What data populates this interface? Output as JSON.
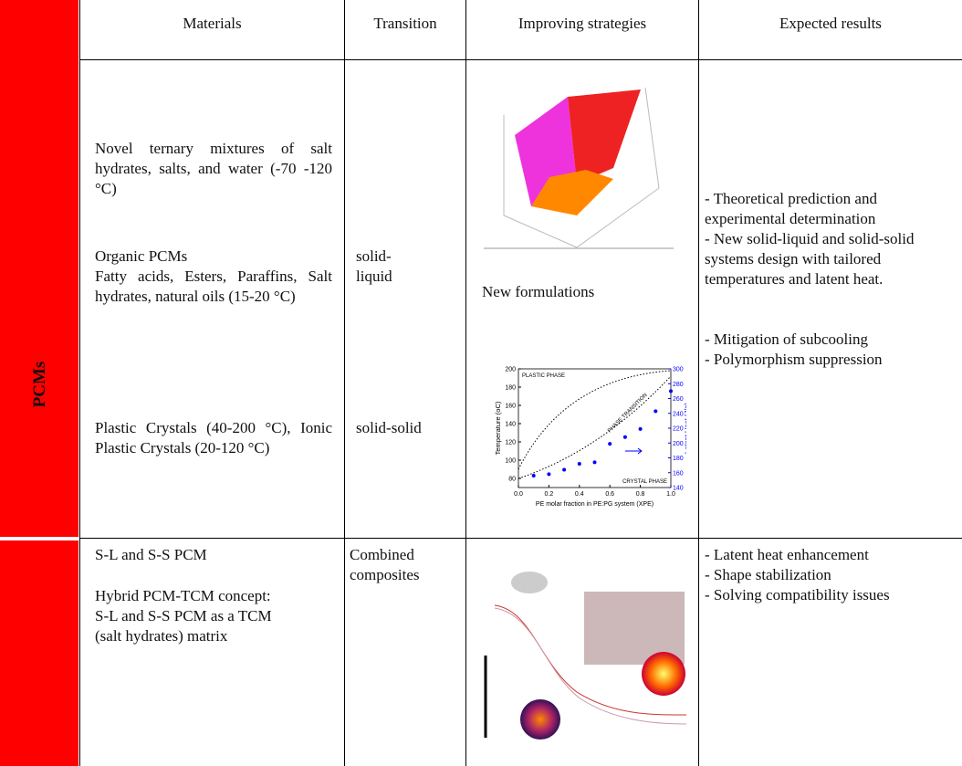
{
  "side_label": "PCMs",
  "table": {
    "headers": [
      "Materials",
      "Transition",
      "Improving strategies",
      "Expected results"
    ],
    "rows": [
      {
        "materials": [
          "Novel ternary mixtures of salt hydrates, salts, and water (-70 -120 °C)",
          "Organic PCMs",
          "Fatty acids, Esters, Paraffins, Salt hydrates, natural oils (15-20 °C)",
          "Plastic Crystals (40-200 °C), Ionic Plastic Crystals (20-120 °C)"
        ],
        "transition": [
          "solid-liquid",
          "solid-solid"
        ],
        "strategy": "New formulations",
        "results": [
          "- Theoretical prediction and experimental determination",
          "- New solid-liquid and solid-solid systems design with tailored temperatures and latent heat.",
          "- Mitigation of subcooling",
          "- Polymorphism suppression"
        ]
      },
      {
        "materials": [
          "S-L and S-S PCM",
          "Hybrid PCM-TCM concept: S-L and S-S PCM as a TCM (salt hydrates) matrix"
        ],
        "transition": [
          "Combined composites"
        ],
        "results": [
          "- Latent heat enhancement",
          "- Shape stabilization",
          "- Solving compatibility issues"
        ]
      }
    ]
  },
  "figure": {
    "chart_data": {
      "type": "scatter",
      "x_label": "PE molar fraction in PE:PG system (XPE)",
      "y_label": "Temperature (oC)",
      "y2_label": "Latent Heat (J/g)",
      "annotations": [
        "PLASTIC PHASE",
        "PHASE TRANSITION",
        "CRYSTAL PHASE"
      ],
      "xlim": [
        0,
        1
      ],
      "xticks": [
        {
          "value": 0,
          "label": "0.0"
        },
        0.2,
        0.4,
        0.6,
        0.8,
        {
          "value": 1,
          "label": "1.0"
        }
      ],
      "ylim": [
        70,
        200
      ],
      "yticks": [
        80,
        100,
        120,
        140,
        160,
        180,
        200
      ],
      "y2lim": [
        140,
        300
      ],
      "y2ticks": [
        140,
        160,
        180,
        200,
        220,
        240,
        260,
        280,
        300
      ],
      "series": [
        {
          "axis": "y2",
          "color": "#0000ff",
          "x": [
            0.1,
            0.2,
            0.3,
            0.4,
            0.5,
            0.6,
            0.7,
            0.8,
            0.9,
            1.0
          ],
          "values": [
            156,
            158,
            164,
            172,
            174,
            199,
            208,
            219,
            243,
            270
          ]
        }
      ]
    }
  }
}
